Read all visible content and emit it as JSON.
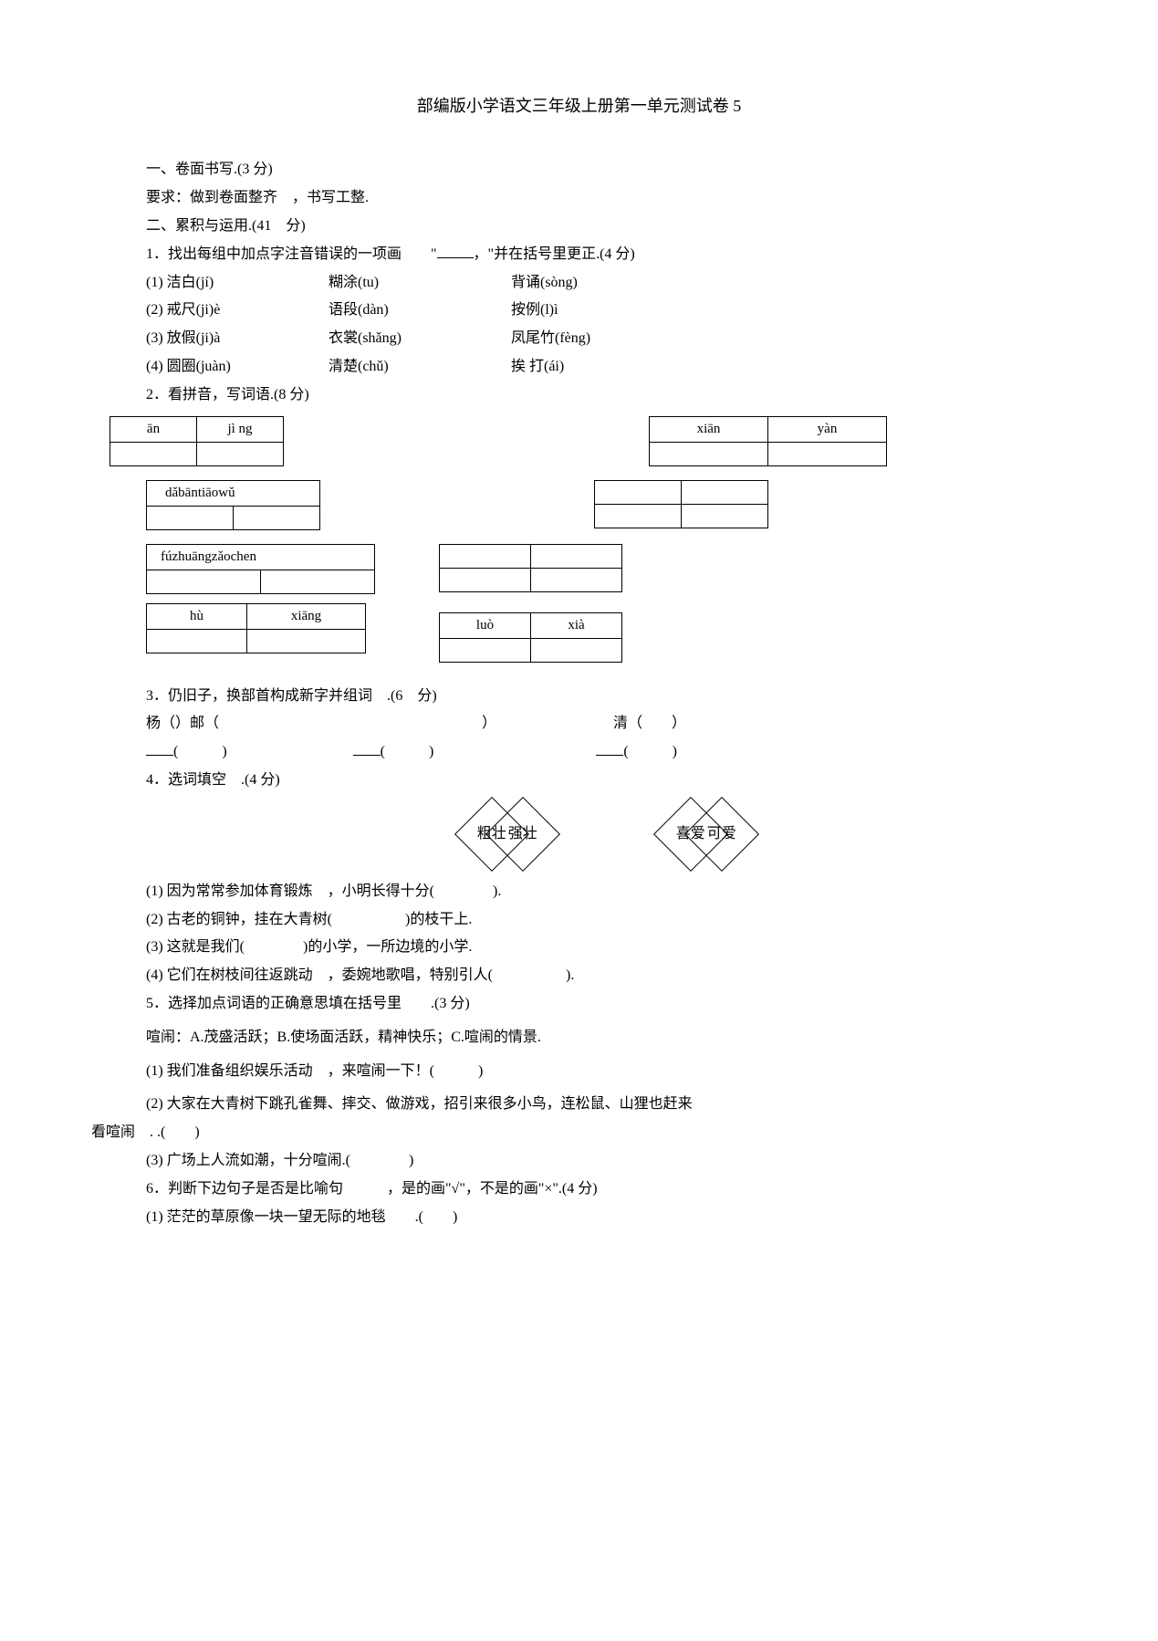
{
  "title": "部编版小学语文三年级上册第一单元测试卷 5",
  "s1": {
    "head": "一、卷面书写.(3 分)",
    "req": "要求：做到卷面整齐　，书写工整."
  },
  "s2": {
    "head": "二、累积与运用.(41　分)",
    "q1": {
      "stem_a": "1．找出每组中加点字注音错误的一项画　　\"",
      "stem_b": "，\"并在括号里更正.(4 分)",
      "rows": [
        {
          "n": "(1)",
          "a": "洁白(jí)",
          "b": "糊涂(tu)",
          "c": "背诵(sòng)"
        },
        {
          "n": "(2)",
          "a": "戒尺(ji)è",
          "b": "语段(dàn)",
          "c": "按例(l)ì"
        },
        {
          "n": "(3)",
          "a": "放假(ji)à",
          "b": "衣裳(shǎng)",
          "c": "凤尾竹(fèng)"
        },
        {
          "n": "(4)",
          "a": "圆圈(juàn)",
          "b": "清楚(chǔ)",
          "c": "挨 打(ái)"
        }
      ]
    },
    "q2": {
      "stem": "2．看拼音，写词语.(8 分)",
      "t1a": {
        "c1": "ān",
        "c2": "jì ng",
        "w1": 95,
        "w2": 95
      },
      "t1b": {
        "c1": "xiān",
        "c2": "yàn",
        "w1": 130,
        "w2": 130
      },
      "t2a": {
        "label": "dǎbāntiāowǔ",
        "w1": 95,
        "w2": 95
      },
      "t2b": {
        "w1": 95,
        "w2": 95
      },
      "t3a": {
        "label": "fúzhuāngzǎochen",
        "w1": 125,
        "w2": 125
      },
      "t3b": {
        "w1": 100,
        "w2": 100
      },
      "t4a": {
        "c1": "hù",
        "c2": "xiāng",
        "w1": 110,
        "w2": 130
      },
      "t4b": {
        "c1": "luò",
        "c2": "xià",
        "w1": 100,
        "w2": 100
      }
    },
    "q3": {
      "stem": "3．仍旧子，换部首构成新字并组词　.(6　分)",
      "l1a": "杨（）邮（",
      "l1b": "）",
      "l1c": "清（　　）",
      "l2": "____(　　　)　　　　　　____(　　　)　　　　　　　　____(　　　)"
    },
    "q4": {
      "stem": "4．选词填空　.(4 分)",
      "d1": "粗壮",
      "d2": "强壮",
      "d3": "喜爱",
      "d4": "可爱",
      "i1": "(1) 因为常常参加体育锻炼　，小明长得十分(　　　　).",
      "i2": "(2) 古老的铜钟，挂在大青树(　　　　　)的枝干上.",
      "i3": "(3) 这就是我们(　　　　)的小学，一所边境的小学.",
      "i4": "(4) 它们在树枝间往返跳动　，委婉地歌唱，特别引人(　　　　　)."
    },
    "q5": {
      "stem": "5．选择加点词语的正确意思填在括号里　　.(3 分)",
      "def": "喧闹：A.茂盛活跃；B.使场面活跃，精神快乐；C.喧闹的情景.",
      "i1": "(1) 我们准备组织娱乐活动　，来喧闹一下！(　　　)",
      "i2": "(2) 大家在大青树下跳孔雀舞、摔交、做游戏，招引来很多小鸟，连松鼠、山狸也赶来",
      "i2b": "看喧闹　. .(　　)",
      "i3": "(3) 广场上人流如潮，十分喧闹.(　　　　)"
    },
    "q6": {
      "stem": "6．判断下边句子是否是比喻句　　　，是的画\"√\"，不是的画\"×\".(4 分)",
      "i1": "(1) 茫茫的草原像一块一望无际的地毯　　.(　　)"
    }
  }
}
